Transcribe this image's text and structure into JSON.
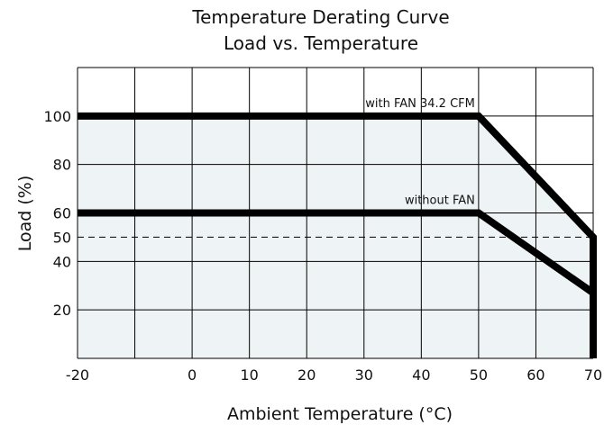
{
  "chart_data": {
    "type": "line",
    "title": "Temperature Derating Curve",
    "subtitle": "Load vs. Temperature",
    "xlabel": "Ambient Temperature (°C)",
    "ylabel": "Load (%)",
    "xlim": [
      -20,
      70
    ],
    "ylim": [
      0,
      120
    ],
    "x_ticks": [
      -20,
      0,
      10,
      20,
      30,
      40,
      50,
      60,
      70
    ],
    "x_tick_labels": [
      "-20",
      "0",
      "10",
      "20",
      "30",
      "40",
      "50",
      "60",
      "70"
    ],
    "y_ticks": [
      20,
      40,
      50,
      60,
      80,
      100
    ],
    "y_tick_labels": [
      "20",
      "40",
      "50",
      "60",
      "80",
      "100"
    ],
    "x_grid": [
      -20,
      -10,
      0,
      10,
      20,
      30,
      40,
      50,
      60,
      70
    ],
    "y_grid": [
      0,
      20,
      40,
      60,
      80,
      100,
      120
    ],
    "grid": true,
    "reference_line": {
      "y": 50,
      "style": "dashed"
    },
    "series": [
      {
        "name": "with FAN 34.2 CFM",
        "x": [
          -20,
          50,
          70,
          70
        ],
        "y": [
          100,
          100,
          50,
          0
        ]
      },
      {
        "name": "without FAN",
        "x": [
          -20,
          50,
          70
        ],
        "y": [
          60,
          60,
          27
        ]
      }
    ],
    "colors": {
      "line": "#000000",
      "fill": "#eef3f5",
      "grid": "#000000"
    }
  }
}
